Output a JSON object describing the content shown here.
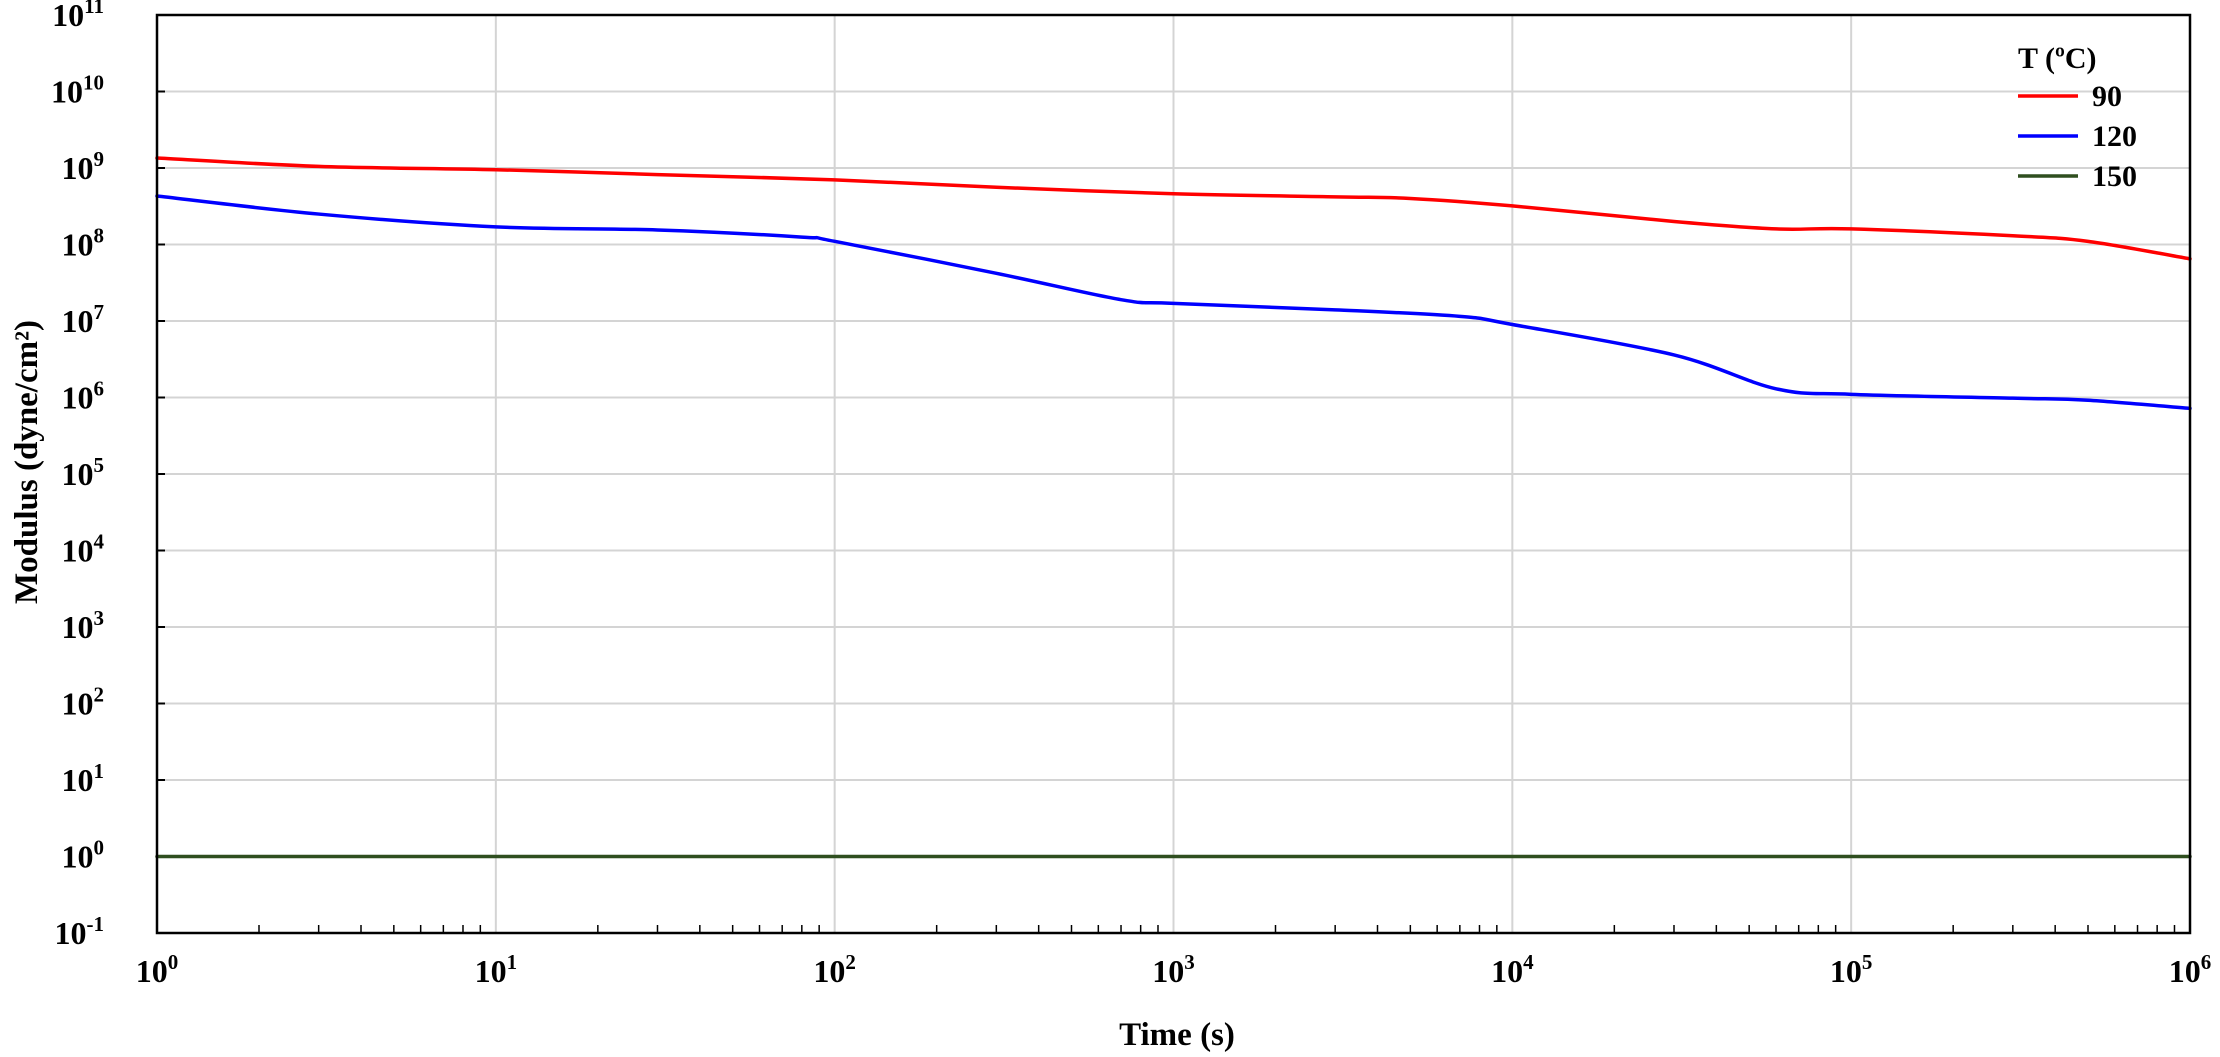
{
  "chart_data": {
    "type": "line",
    "title": "",
    "xlabel": "Time (s)",
    "ylabel": "Modulus (dyne/cm²)",
    "x_scale": "log",
    "y_scale": "log",
    "xlim": [
      1,
      1000000
    ],
    "ylim": [
      0.1,
      100000000000
    ],
    "grid": true,
    "legend_position": "top-right",
    "legend_title": "T (ºC)",
    "x_ticks": [
      {
        "base": "10",
        "exp": "0"
      },
      {
        "base": "10",
        "exp": "1"
      },
      {
        "base": "10",
        "exp": "2"
      },
      {
        "base": "10",
        "exp": "3"
      },
      {
        "base": "10",
        "exp": "4"
      },
      {
        "base": "10",
        "exp": "5"
      },
      {
        "base": "10",
        "exp": "6"
      }
    ],
    "y_ticks": [
      {
        "base": "10",
        "exp": "-1"
      },
      {
        "base": "10",
        "exp": "0"
      },
      {
        "base": "10",
        "exp": "1"
      },
      {
        "base": "10",
        "exp": "2"
      },
      {
        "base": "10",
        "exp": "3"
      },
      {
        "base": "10",
        "exp": "4"
      },
      {
        "base": "10",
        "exp": "5"
      },
      {
        "base": "10",
        "exp": "6"
      },
      {
        "base": "10",
        "exp": "7"
      },
      {
        "base": "10",
        "exp": "8"
      },
      {
        "base": "10",
        "exp": "9"
      },
      {
        "base": "10",
        "exp": "10"
      },
      {
        "base": "10",
        "exp": "11"
      }
    ],
    "series": [
      {
        "name": "90",
        "color": "#ff0000",
        "x": [
          1,
          3,
          10,
          30,
          100,
          300,
          1000,
          3000,
          5000,
          10000,
          30000,
          60000,
          100000,
          300000,
          500000,
          1000000
        ],
        "y": [
          1350000000.0,
          1050000000.0,
          950000000.0,
          820000000.0,
          700000000.0,
          560000000.0,
          460000000.0,
          420000000.0,
          400000000.0,
          320000000.0,
          200000000.0,
          160000000.0,
          160000000.0,
          130000000.0,
          110000000.0,
          65000000.0
        ]
      },
      {
        "name": "120",
        "color": "#0000ff",
        "x": [
          1,
          3,
          10,
          30,
          80,
          100,
          300,
          700,
          1000,
          3000,
          7000,
          10000,
          30000,
          60000,
          100000,
          300000,
          500000,
          1000000
        ],
        "y": [
          430000000.0,
          250000000.0,
          170000000.0,
          155000000.0,
          125000000.0,
          110000000.0,
          42000000.0,
          19000000.0,
          17000000.0,
          14000000.0,
          11500000.0,
          9000000.0,
          3600000.0,
          1300000.0,
          1100000.0,
          980000.0,
          920000.0,
          720000.0
        ]
      },
      {
        "name": "150",
        "color": "#2f4f1f",
        "x": [
          1,
          1000000
        ],
        "y": [
          1,
          1
        ]
      }
    ]
  }
}
